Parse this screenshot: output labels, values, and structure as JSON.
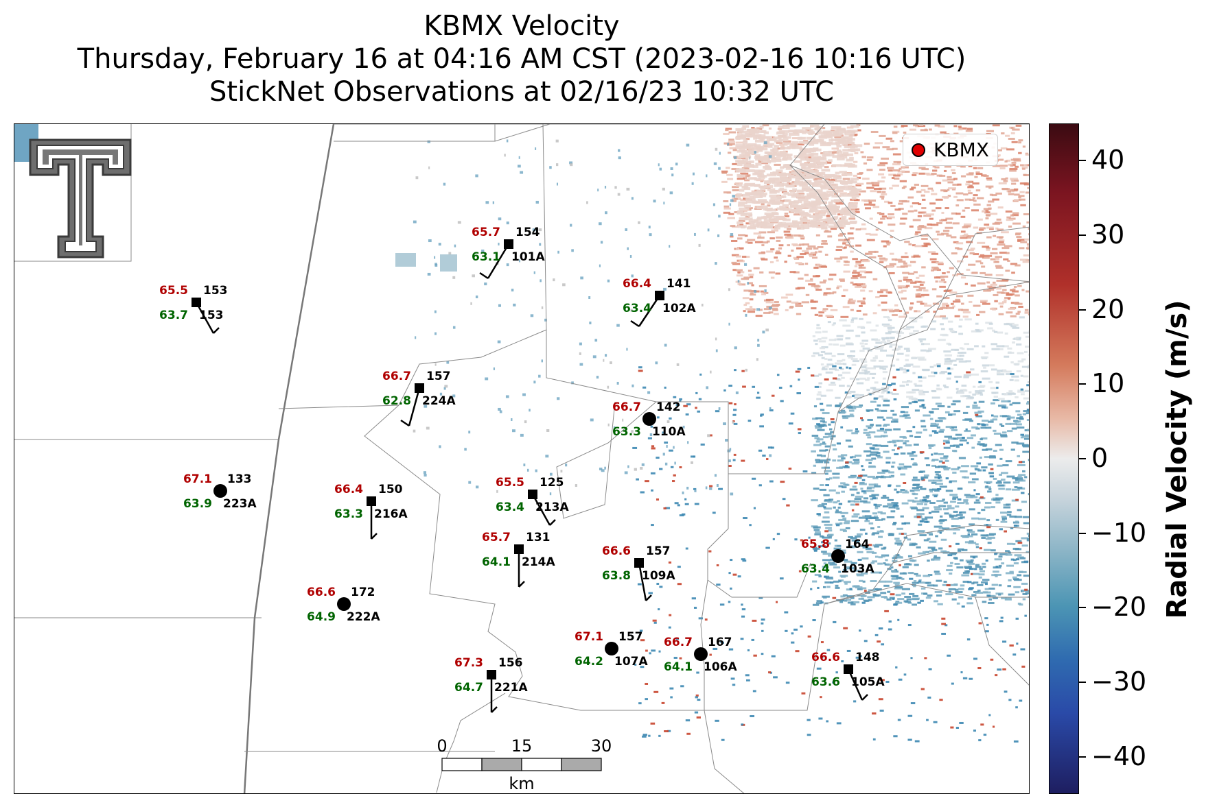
{
  "title": {
    "line1": "KBMX Velocity",
    "line2": "Thursday, February 16 at 04:16 AM CST (2023-02-16 10:16 UTC)",
    "line3": "StickNet Observations at 02/16/23 10:32 UTC"
  },
  "legend": {
    "label": "KBMX",
    "marker_color": "#e00000"
  },
  "colorbar": {
    "title": "Radial Velocity (m/s)",
    "ticks": [
      "40",
      "30",
      "20",
      "10",
      "0",
      "−10",
      "−20",
      "−30",
      "−40"
    ],
    "tick_values": [
      40,
      30,
      20,
      10,
      0,
      -10,
      -20,
      -30,
      -40
    ],
    "range": [
      -45,
      45
    ]
  },
  "scale_bar": {
    "labels": [
      "0",
      "15",
      "30"
    ],
    "unit": "km"
  },
  "logo": {
    "name": "texas-tech-double-t-logo"
  },
  "stations": [
    {
      "id": "101A",
      "dir": "154",
      "temp": "65.7",
      "dew": "63.1",
      "marker": "square"
    },
    {
      "id": "153",
      "dir": "153",
      "temp": "65.5",
      "dew": "63.7",
      "marker": "square"
    },
    {
      "id": "102A",
      "dir": "141",
      "temp": "66.4",
      "dew": "63.4",
      "marker": "square"
    },
    {
      "id": "224A",
      "dir": "157",
      "temp": "66.7",
      "dew": "62.8",
      "marker": "square"
    },
    {
      "id": "110A",
      "dir": "142",
      "temp": "66.7",
      "dew": "63.3",
      "marker": "circle"
    },
    {
      "id": "223A",
      "dir": "133",
      "temp": "67.1",
      "dew": "63.9",
      "marker": "circle"
    },
    {
      "id": "216A",
      "dir": "150",
      "temp": "66.4",
      "dew": "63.3",
      "marker": "square"
    },
    {
      "id": "213A",
      "dir": "125",
      "temp": "65.5",
      "dew": "63.4",
      "marker": "square"
    },
    {
      "id": "214A",
      "dir": "131",
      "temp": "65.7",
      "dew": "64.1",
      "marker": "square"
    },
    {
      "id": "109A",
      "dir": "157",
      "temp": "66.6",
      "dew": "63.8",
      "marker": "square"
    },
    {
      "id": "103A",
      "dir": "164",
      "temp": "65.8",
      "dew": "63.4",
      "marker": "circle"
    },
    {
      "id": "222A",
      "dir": "172",
      "temp": "66.6",
      "dew": "64.9",
      "marker": "circle"
    },
    {
      "id": "107A",
      "dir": "157",
      "temp": "67.1",
      "dew": "64.2",
      "marker": "circle"
    },
    {
      "id": "106A",
      "dir": "167",
      "temp": "66.7",
      "dew": "64.1",
      "marker": "circle"
    },
    {
      "id": "221A",
      "dir": "156",
      "temp": "67.3",
      "dew": "64.7",
      "marker": "square"
    },
    {
      "id": "105A",
      "dir": "148",
      "temp": "66.6",
      "dew": "63.6",
      "marker": "square"
    }
  ],
  "colors": {
    "temp": "#b00000",
    "dew": "#006400",
    "text": "#000000"
  }
}
